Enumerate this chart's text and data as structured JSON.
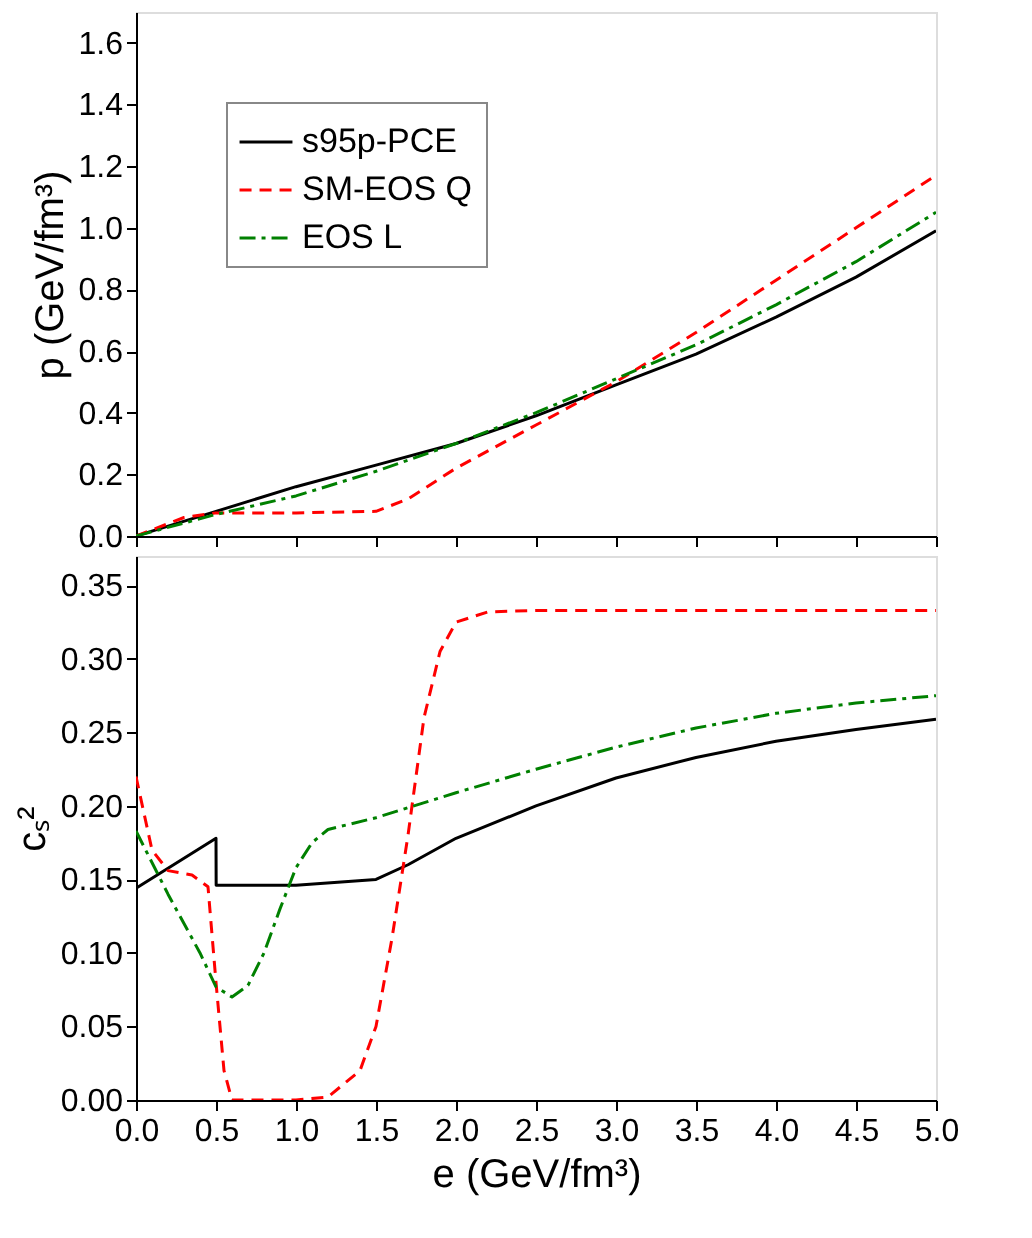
{
  "chart_data": [
    {
      "type": "line",
      "ylabel": "p (GeV/fm³)",
      "xlim": [
        0,
        5
      ],
      "xticks": [
        0,
        0.5,
        1,
        1.5,
        2,
        2.5,
        3,
        3.5,
        4,
        4.5,
        5
      ],
      "ylim": [
        0,
        1.7
      ],
      "yticks": [
        {
          "value": 0,
          "label": "0.0"
        },
        0.2,
        0.4,
        0.6,
        0.8,
        {
          "value": 1,
          "label": "1.0"
        },
        1.2,
        1.4,
        1.6
      ],
      "tick_labels": "y",
      "grid": false,
      "legend": "top left",
      "series": [
        {
          "name": "s95p-PCE",
          "color": "#000000",
          "line_style": "solid",
          "x": [
            0,
            0.5,
            1,
            1.5,
            2,
            2.5,
            3,
            3.5,
            4,
            4.5,
            5
          ],
          "values": [
            0,
            0.08,
            0.16,
            0.23,
            0.3,
            0.39,
            0.49,
            0.59,
            0.71,
            0.84,
            0.99
          ]
        },
        {
          "name": "SM-EOS Q",
          "color": "#ff0000",
          "line_style": "dashed",
          "x": [
            0,
            0.3,
            0.5,
            1,
            1.5,
            1.7,
            2,
            2.5,
            3,
            3.5,
            4,
            4.5,
            5
          ],
          "values": [
            0,
            0.06,
            0.075,
            0.075,
            0.08,
            0.12,
            0.22,
            0.36,
            0.5,
            0.66,
            0.83,
            1.0,
            1.17
          ]
        },
        {
          "name": "EOS L",
          "color": "#008000",
          "line_style": "dashdot",
          "x": [
            0,
            0.5,
            1,
            1.5,
            2,
            2.5,
            3,
            3.5,
            4,
            4.5,
            5
          ],
          "values": [
            0,
            0.07,
            0.13,
            0.21,
            0.3,
            0.4,
            0.51,
            0.62,
            0.75,
            0.89,
            1.05
          ]
        }
      ]
    },
    {
      "type": "line",
      "xlabel": "e (GeV/fm³)",
      "ylabel": "cₛ²",
      "xlim": [
        0,
        5
      ],
      "xticks": [
        {
          "value": 0,
          "label": "0.0"
        },
        0.5,
        {
          "value": 1,
          "label": "1.0"
        },
        1.5,
        {
          "value": 2,
          "label": "2.0"
        },
        2.5,
        {
          "value": 3,
          "label": "3.0"
        },
        3.5,
        {
          "value": 4,
          "label": "4.0"
        },
        4.5,
        {
          "value": 5,
          "label": "5.0"
        }
      ],
      "ylim": [
        0,
        0.37
      ],
      "yticks": [
        {
          "value": 0,
          "label": "0.00"
        },
        0.05,
        {
          "value": 0.1,
          "label": "0.10"
        },
        0.15,
        {
          "value": 0.2,
          "label": "0.20"
        },
        0.25,
        {
          "value": 0.3,
          "label": "0.30"
        },
        0.35
      ],
      "grid": false,
      "legend": false,
      "series": [
        {
          "color": "#000000",
          "line_style": "solid",
          "x": [
            0,
            0.5,
            0.501,
            1,
            1.5,
            1.7,
            2,
            2.5,
            3,
            3.5,
            4,
            4.5,
            5
          ],
          "values": [
            0.144,
            0.178,
            0.146,
            0.146,
            0.15,
            0.16,
            0.178,
            0.2,
            0.219,
            0.233,
            0.244,
            0.252,
            0.259
          ]
        },
        {
          "color": "#ff0000",
          "line_style": "dashed",
          "x": [
            0,
            0.1,
            0.2,
            0.35,
            0.45,
            0.5,
            0.55,
            0.6,
            1,
            1.2,
            1.4,
            1.5,
            1.6,
            1.7,
            1.8,
            1.9,
            2,
            2.2,
            2.5,
            5
          ],
          "values": [
            0.22,
            0.17,
            0.156,
            0.153,
            0.145,
            0.08,
            0.02,
            0,
            0,
            0.002,
            0.02,
            0.05,
            0.11,
            0.18,
            0.26,
            0.305,
            0.325,
            0.332,
            0.333,
            0.333
          ]
        },
        {
          "color": "#008000",
          "line_style": "dashdot",
          "x": [
            0,
            0.2,
            0.4,
            0.5,
            0.6,
            0.7,
            0.8,
            0.9,
            1,
            1.1,
            1.2,
            1.5,
            2,
            2.5,
            3,
            3.5,
            4,
            4.5,
            5
          ],
          "values": [
            0.183,
            0.14,
            0.1,
            0.077,
            0.07,
            0.078,
            0.1,
            0.13,
            0.158,
            0.175,
            0.184,
            0.192,
            0.209,
            0.225,
            0.24,
            0.253,
            0.263,
            0.27,
            0.275
          ]
        }
      ]
    }
  ]
}
